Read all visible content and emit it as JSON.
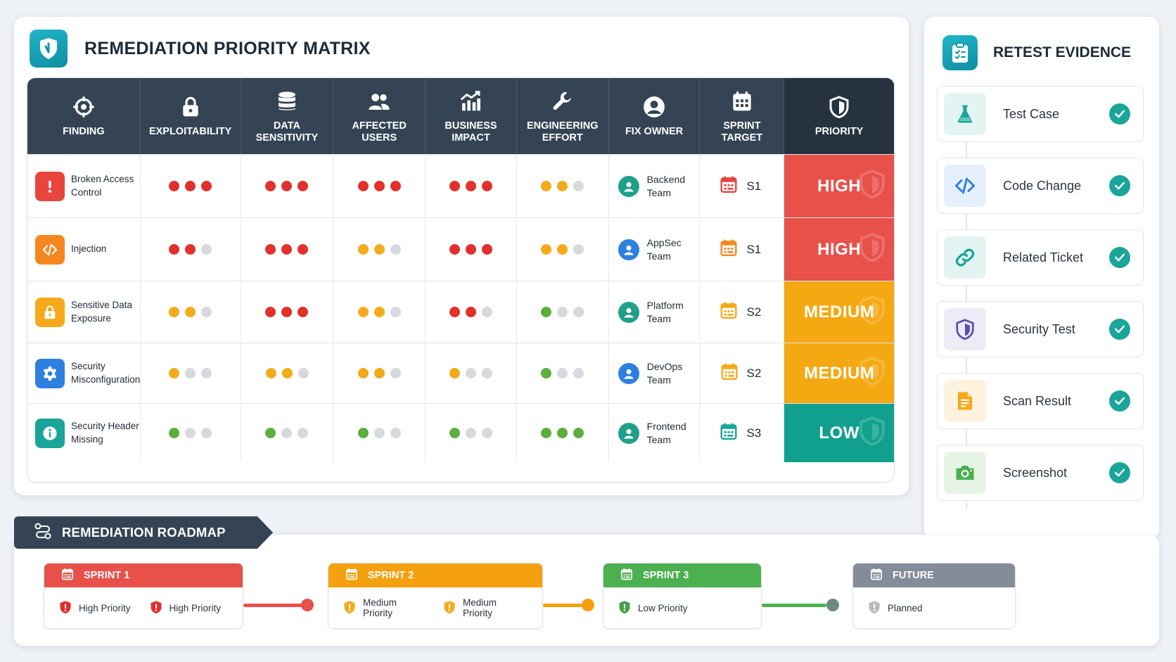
{
  "matrix": {
    "title": "REMEDIATION PRIORITY MATRIX",
    "headers": [
      {
        "label": [
          "FINDING"
        ],
        "icon": "crosshair-icon"
      },
      {
        "label": [
          "EXPLOITABILITY"
        ],
        "icon": "lock-icon"
      },
      {
        "label": [
          "DATA",
          "SENSITIVITY"
        ],
        "icon": "database-icon"
      },
      {
        "label": [
          "AFFECTED",
          "USERS"
        ],
        "icon": "users-icon"
      },
      {
        "label": [
          "BUSINESS",
          "IMPACT"
        ],
        "icon": "chart-icon"
      },
      {
        "label": [
          "ENGINEERING",
          "EFFORT"
        ],
        "icon": "wrench-icon"
      },
      {
        "label": [
          "FIX OWNER"
        ],
        "icon": "user-icon"
      },
      {
        "label": [
          "SPRINT",
          "TARGET"
        ],
        "icon": "calendar-icon"
      },
      {
        "label": [
          "PRIORITY"
        ],
        "icon": "shield-icon"
      }
    ],
    "rows": [
      {
        "finding": [
          "Broken Access",
          "Control"
        ],
        "icon": "alert-icon",
        "icon_color": "#e8453c",
        "scores": [
          [
            3,
            "#e2302d"
          ],
          [
            3,
            "#e2302d"
          ],
          [
            3,
            "#e2302d"
          ],
          [
            3,
            "#e2302d"
          ],
          [
            2,
            "#f3ab1b"
          ]
        ],
        "owner": [
          "Backend",
          "Team"
        ],
        "owner_color": "#1fa08c",
        "sprint": "S1",
        "sprint_color": "#e8453c",
        "priority": "HIGH",
        "priority_color": "#e8514a"
      },
      {
        "finding": [
          "Injection"
        ],
        "icon": "code-icon",
        "icon_color": "#f5871f",
        "scores": [
          [
            2,
            "#e2302d"
          ],
          [
            3,
            "#e2302d"
          ],
          [
            2,
            "#f3ab1b"
          ],
          [
            3,
            "#e2302d"
          ],
          [
            2,
            "#f3ab1b"
          ]
        ],
        "owner": [
          "AppSec",
          "Team"
        ],
        "owner_color": "#2d7fe0",
        "sprint": "S1",
        "sprint_color": "#f5871f",
        "priority": "HIGH",
        "priority_color": "#e8514a"
      },
      {
        "finding": [
          "Sensitive Data",
          "Exposure"
        ],
        "icon": "padlock-icon",
        "icon_color": "#f5a91a",
        "scores": [
          [
            2,
            "#f3ab1b"
          ],
          [
            3,
            "#e2302d"
          ],
          [
            2,
            "#f3ab1b"
          ],
          [
            2,
            "#e2302d"
          ],
          [
            1,
            "#5cae3d"
          ]
        ],
        "owner": [
          "Platform",
          "Team"
        ],
        "owner_color": "#1fa08c",
        "sprint": "S2",
        "sprint_color": "#f5a91a",
        "priority": "MEDIUM",
        "priority_color": "#f4a812"
      },
      {
        "finding": [
          "Security",
          "Misconfiguration"
        ],
        "icon": "gear-icon",
        "icon_color": "#2d7fe0",
        "scores": [
          [
            1,
            "#f3ab1b"
          ],
          [
            2,
            "#f3ab1b"
          ],
          [
            2,
            "#f3ab1b"
          ],
          [
            1,
            "#f3ab1b"
          ],
          [
            1,
            "#5cae3d"
          ]
        ],
        "owner": [
          "DevOps",
          "Team"
        ],
        "owner_color": "#2d7fe0",
        "sprint": "S2",
        "sprint_color": "#f5a91a",
        "priority": "MEDIUM",
        "priority_color": "#f4a812"
      },
      {
        "finding": [
          "Security Header",
          "Missing"
        ],
        "icon": "info-icon",
        "icon_color": "#1aa59a",
        "scores": [
          [
            1,
            "#5cae3d"
          ],
          [
            1,
            "#5cae3d"
          ],
          [
            1,
            "#5cae3d"
          ],
          [
            1,
            "#5cae3d"
          ],
          [
            3,
            "#5cae3d"
          ]
        ],
        "owner": [
          "Frontend",
          "Team"
        ],
        "owner_color": "#1fa08c",
        "sprint": "S3",
        "sprint_color": "#1aa59a",
        "priority": "LOW",
        "priority_color": "#12a08e"
      }
    ]
  },
  "evidence": {
    "title": "RETEST EVIDENCE",
    "items": [
      {
        "label": "Test Case",
        "icon": "flask-icon",
        "color": "#1aa59a",
        "bg": "#e3f4f3"
      },
      {
        "label": "Code Change",
        "icon": "code-icon",
        "color": "#2d7fe0",
        "bg": "#e6f0fc"
      },
      {
        "label": "Related Ticket",
        "icon": "link-icon",
        "color": "#1aa59a",
        "bg": "#e3f4f3"
      },
      {
        "label": "Security Test",
        "icon": "shield-icon",
        "color": "#5b4fa8",
        "bg": "#ecebf6"
      },
      {
        "label": "Scan Result",
        "icon": "document-icon",
        "color": "#f5a91a",
        "bg": "#fdf3df"
      },
      {
        "label": "Screenshot",
        "icon": "camera-icon",
        "color": "#4caf50",
        "bg": "#e6f4e6"
      }
    ]
  },
  "roadmap": {
    "title": "REMEDIATION ROADMAP",
    "sprints": [
      {
        "name": "SPRINT 1",
        "color": "#e8514a",
        "tags": [
          "High Priority",
          "High Priority"
        ],
        "tag_color": "#e2302d"
      },
      {
        "name": "SPRINT 2",
        "color": "#f5a00e",
        "tags": [
          "Medium Priority",
          "Medium Priority"
        ],
        "tag_color": "#f3ab1b"
      },
      {
        "name": "SPRINT 3",
        "color": "#4caf50",
        "tags": [
          "Low Priority"
        ],
        "tag_color": "#43a047"
      },
      {
        "name": "FUTURE",
        "color": "#858c99",
        "tags": [
          "Planned"
        ],
        "tag_color": "#b8bdc4"
      }
    ]
  }
}
